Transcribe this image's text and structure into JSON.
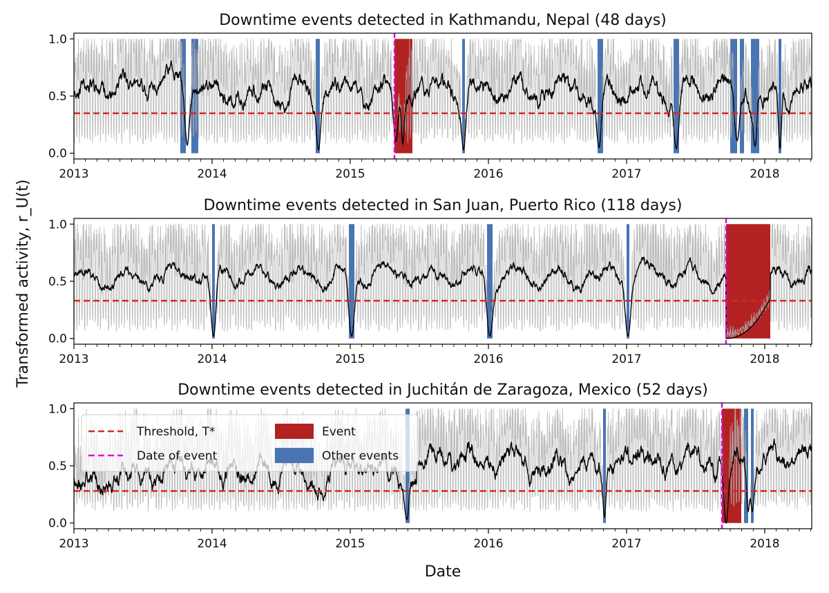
{
  "figure": {
    "ylabel": "Transformed activity, r_U(t)",
    "xlabel": "Date"
  },
  "legend": {
    "items": [
      {
        "label": "Threshold, T*",
        "kind": "dashed",
        "color": "#d62728"
      },
      {
        "label": "Date of event",
        "kind": "dashed",
        "color": "#e20ae2"
      },
      {
        "label": "Event",
        "kind": "patch",
        "color": "#b22222"
      },
      {
        "label": "Other events",
        "kind": "patch",
        "color": "#4a74b2"
      }
    ]
  },
  "colors": {
    "raw_series": "#b0b0b0",
    "smoothed_series": "#000000",
    "threshold": "#d62728",
    "event_date": "#e20ae2",
    "event": "#b22222",
    "other_events": "#4a74b2"
  },
  "chart_data": [
    {
      "type": "line",
      "title": "Downtime events detected in Kathmandu, Nepal (48 days)",
      "xlabel": "",
      "ylabel": "",
      "xlim": [
        2013.0,
        2018.34
      ],
      "ylim": [
        -0.05,
        1.05
      ],
      "x_ticks": [
        "2013",
        "2014",
        "2015",
        "2016",
        "2017",
        "2018"
      ],
      "y_ticks": [
        "0.0",
        "0.5",
        "1.0"
      ],
      "threshold": 0.35,
      "event_date": 2015.32,
      "event": {
        "start": 2015.32,
        "end": 2015.45,
        "days": 48
      },
      "other_events": [
        [
          2013.77,
          2013.81
        ],
        [
          2013.85,
          2013.9
        ],
        [
          2014.75,
          2014.78
        ],
        [
          2015.81,
          2015.83
        ],
        [
          2016.79,
          2016.83
        ],
        [
          2017.34,
          2017.38
        ],
        [
          2017.75,
          2017.8
        ],
        [
          2017.82,
          2017.85
        ],
        [
          2017.9,
          2017.96
        ],
        [
          2018.1,
          2018.12
        ]
      ],
      "series_shape": {
        "base": 0.55,
        "seasonal_amp": 0.06,
        "noise": 0.08,
        "raw_low": 0.08,
        "raw_high": 0.88,
        "seed": 11
      },
      "dips": [
        [
          2013.82,
          0.07,
          0.5
        ],
        [
          2014.77,
          0.03,
          0.45
        ],
        [
          2015.33,
          0.1,
          0.55
        ],
        [
          2015.38,
          0.08,
          0.35
        ],
        [
          2015.82,
          0.03,
          0.45
        ],
        [
          2016.8,
          0.05,
          0.5
        ],
        [
          2017.36,
          0.04,
          0.5
        ],
        [
          2017.8,
          0.11,
          0.55
        ],
        [
          2017.93,
          0.06,
          0.4
        ],
        [
          2018.11,
          0.04,
          0.35
        ]
      ]
    },
    {
      "type": "line",
      "title": "Downtime events detected in San Juan, Puerto Rico (118 days)",
      "xlabel": "",
      "ylabel": "",
      "xlim": [
        2013.0,
        2018.34
      ],
      "ylim": [
        -0.05,
        1.05
      ],
      "x_ticks": [
        "2013",
        "2014",
        "2015",
        "2016",
        "2017",
        "2018"
      ],
      "y_ticks": [
        "0.0",
        "0.5",
        "1.0"
      ],
      "threshold": 0.33,
      "event_date": 2017.72,
      "event": {
        "start": 2017.72,
        "end": 2018.04,
        "days": 118
      },
      "other_events": [
        [
          2014.0,
          2014.02
        ],
        [
          2014.99,
          2015.03
        ],
        [
          2015.99,
          2016.03
        ],
        [
          2017.0,
          2017.02
        ]
      ],
      "series_shape": {
        "base": 0.55,
        "seasonal_amp": 0.07,
        "noise": 0.05,
        "raw_low": 0.06,
        "raw_high": 0.9,
        "seed": 23
      },
      "dips": [
        [
          2014.01,
          0.02,
          0.6
        ],
        [
          2015.01,
          0.02,
          0.65
        ],
        [
          2016.01,
          0.02,
          0.6
        ],
        [
          2017.01,
          0.02,
          0.6
        ]
      ],
      "outage": {
        "start": 2017.72,
        "end": 2018.04,
        "low": 0.0
      }
    },
    {
      "type": "line",
      "title": "Downtime events detected in Juchitán de Zaragoza, Mexico (52 days)",
      "xlabel": "Date",
      "ylabel": "",
      "xlim": [
        2013.0,
        2018.34
      ],
      "ylim": [
        -0.05,
        1.05
      ],
      "x_ticks": [
        "2013",
        "2014",
        "2015",
        "2016",
        "2017",
        "2018"
      ],
      "y_ticks": [
        "0.0",
        "0.5",
        "1.0"
      ],
      "threshold": 0.28,
      "event_date": 2017.69,
      "event": {
        "start": 2017.69,
        "end": 2017.83,
        "days": 52
      },
      "other_events": [
        [
          2015.4,
          2015.43
        ],
        [
          2016.83,
          2016.85
        ],
        [
          2017.85,
          2017.88
        ],
        [
          2017.9,
          2017.92
        ]
      ],
      "series_shape": {
        "base": 0.42,
        "seasonal_amp": 0.06,
        "noise": 0.09,
        "raw_low": 0.1,
        "raw_high": 0.95,
        "seed": 37,
        "step_year": 2015.48,
        "base_after": 0.55
      },
      "dips": [
        [
          2015.41,
          0.03,
          0.4
        ],
        [
          2016.84,
          0.05,
          0.35
        ],
        [
          2017.72,
          0.0,
          0.5
        ],
        [
          2017.88,
          0.1,
          0.35
        ],
        [
          2017.91,
          0.1,
          0.35
        ]
      ]
    }
  ]
}
